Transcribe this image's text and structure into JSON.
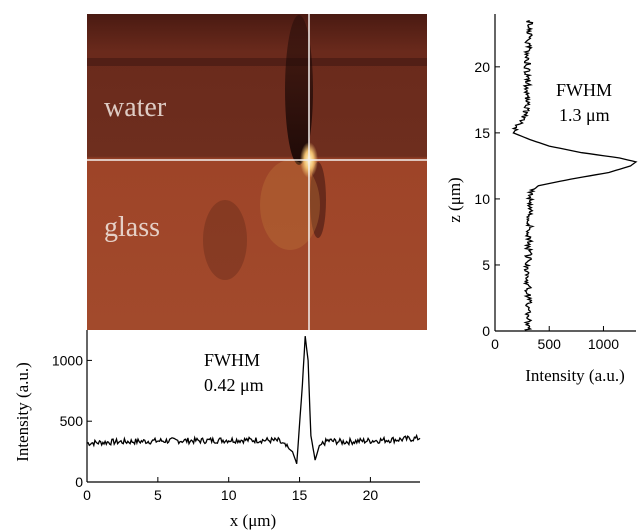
{
  "image_panel": {
    "labels": [
      "water",
      "glass"
    ],
    "colors": {
      "water": "#5a1f14",
      "glass": "#a8482a",
      "crosshair": "#f4f0ee",
      "spot": "#fff3c8"
    }
  },
  "chart_data": [
    {
      "type": "line",
      "panel": "bottom",
      "xlabel": "x (μm)",
      "ylabel": "Intensity (a.u.)",
      "xlim": [
        0,
        23.5
      ],
      "ylim": [
        0,
        1250
      ],
      "xticks": [
        0,
        5,
        10,
        15,
        20
      ],
      "yticks": [
        0,
        500,
        1000
      ],
      "annotation": [
        "FWHM",
        "0.42 μm"
      ],
      "series": [
        {
          "x": [
            0,
            2,
            4,
            6,
            8,
            10,
            12,
            13.5,
            14.5,
            14.8,
            15.2,
            15.4,
            15.6,
            15.8,
            16.1,
            16.4,
            17,
            18,
            20,
            22,
            23.5
          ],
          "y": [
            320,
            330,
            335,
            340,
            340,
            345,
            345,
            340,
            250,
            150,
            800,
            1200,
            1000,
            380,
            180,
            300,
            340,
            330,
            340,
            350,
            360
          ]
        }
      ]
    },
    {
      "type": "line",
      "panel": "right",
      "xlabel": "Intensity (a.u.)",
      "ylabel": "z (μm)",
      "xlim": [
        0,
        1300
      ],
      "ylim": [
        0,
        24
      ],
      "xticks": [
        0,
        500,
        1000
      ],
      "yticks": [
        0,
        5,
        10,
        15,
        20
      ],
      "annotation": [
        "FWHM",
        "1.3 μm"
      ],
      "series": [
        {
          "z": [
            0,
            2,
            4,
            6,
            8,
            9.5,
            10.5,
            11,
            11.5,
            12,
            12.5,
            12.8,
            13.1,
            13.5,
            14,
            14.5,
            15,
            15.5,
            16,
            17,
            18,
            20,
            22,
            23.5
          ],
          "intensity": [
            300,
            310,
            300,
            310,
            320,
            320,
            330,
            400,
            700,
            1050,
            1250,
            1300,
            1150,
            800,
            500,
            320,
            170,
            210,
            270,
            290,
            300,
            300,
            310,
            320
          ]
        }
      ]
    }
  ]
}
